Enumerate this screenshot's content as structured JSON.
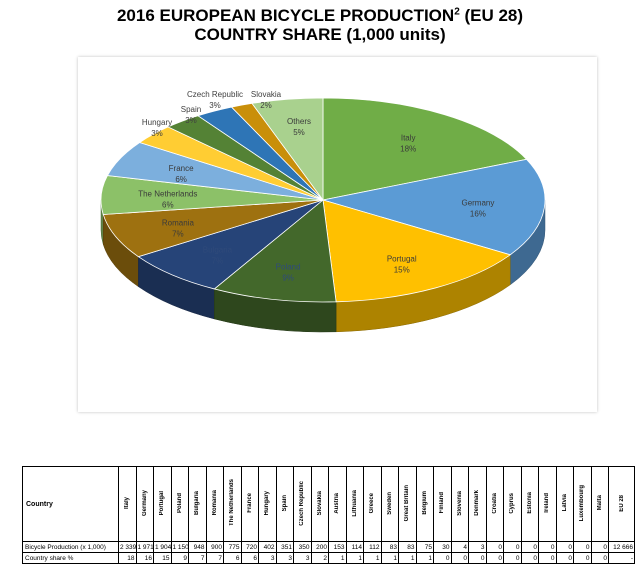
{
  "title_line1": "2016 EUROPEAN BICYCLE PRODUCTION",
  "title_sup": "2",
  "title_line1_tail": " (EU 28)",
  "title_line2": "COUNTRY SHARE (1,000 units)",
  "chart_data": {
    "type": "pie",
    "variant": "3d-exploded-none",
    "unit": "1,000 units",
    "slices": [
      {
        "label": "Italy",
        "percent": "18%",
        "value": 2339,
        "color": "#70ad47"
      },
      {
        "label": "Germany",
        "percent": "16%",
        "value": 1971,
        "color": "#5b9bd5"
      },
      {
        "label": "Portugal",
        "percent": "15%",
        "value": 1904,
        "color": "#ffc000"
      },
      {
        "label": "Poland",
        "percent": "9%",
        "value": 1150,
        "color": "#43682b"
      },
      {
        "label": "Bulgaria",
        "percent": "7%",
        "value": 948,
        "color": "#264478"
      },
      {
        "label": "Romania",
        "percent": "7%",
        "value": 900,
        "color": "#9e7110"
      },
      {
        "label": "The Netherlands",
        "percent": "6%",
        "value": 775,
        "color": "#8cc168"
      },
      {
        "label": "France",
        "percent": "6%",
        "value": 720,
        "color": "#7cafdd"
      },
      {
        "label": "Hungary",
        "percent": "3%",
        "value": 402,
        "color": "#ffcd33"
      },
      {
        "label": "Spain",
        "percent": "3%",
        "value": 351,
        "color": "#548235"
      },
      {
        "label": "Czech Republic",
        "percent": "3%",
        "value": 350,
        "color": "#2e75b6"
      },
      {
        "label": "Slovakia",
        "percent": "2%",
        "value": 200,
        "color": "#c98f0a"
      },
      {
        "label": "Others",
        "percent": "5%",
        "value": 656,
        "color": "#a9d18e"
      }
    ]
  },
  "table": {
    "corner": "Country",
    "countries": [
      "Italy",
      "Germany",
      "Portugal",
      "Poland",
      "Bulgaria",
      "Romania",
      "The Netherlands",
      "France",
      "Hungary",
      "Spain",
      "Czech Republic",
      "Slovakia",
      "Austria",
      "Lithuania",
      "Greece",
      "Sweden",
      "Great Britain",
      "Belgium",
      "Finland",
      "Slovenia",
      "Denmark",
      "Croatia",
      "Cyprus",
      "Estonia",
      "Ireland",
      "Latvia",
      "Luxembourg",
      "Malta",
      "EU 28"
    ],
    "rows": [
      {
        "label": "Bicycle Production (x 1,000)",
        "values": [
          "2 339",
          "1 971",
          "1 904",
          "1 150",
          "948",
          "900",
          "775",
          "720",
          "402",
          "351",
          "350",
          "200",
          "153",
          "114",
          "112",
          "83",
          "83",
          "75",
          "30",
          "4",
          "3",
          "0",
          "0",
          "0",
          "0",
          "0",
          "0",
          "0",
          "12 666"
        ]
      },
      {
        "label": "Country share %",
        "values": [
          "18",
          "16",
          "15",
          "9",
          "7",
          "7",
          "6",
          "6",
          "3",
          "3",
          "3",
          "2",
          "1",
          "1",
          "1",
          "1",
          "1",
          "1",
          "0",
          "0",
          "0",
          "0",
          "0",
          "0",
          "0",
          "0",
          "0",
          "0",
          "-"
        ]
      }
    ]
  }
}
